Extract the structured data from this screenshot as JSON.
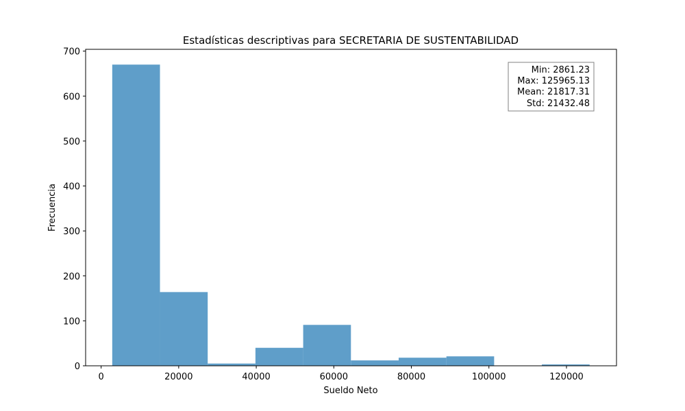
{
  "chart_data": {
    "type": "bar",
    "title": "Estadísticas descriptivas para SECRETARIA DE SUSTENTABILIDAD",
    "xlabel": "Sueldo Neto",
    "ylabel": "Frecuencia",
    "bin_edges": [
      2861.23,
      15171.62,
      27482.01,
      39792.4,
      52102.79,
      64413.18,
      76723.57,
      89033.96,
      101344.35,
      113654.74,
      125965.13
    ],
    "values": [
      670,
      164,
      5,
      40,
      91,
      12,
      18,
      21,
      0,
      3
    ],
    "xlim": [
      -4000,
      132900
    ],
    "ylim": [
      0,
      704
    ],
    "x_ticks": [
      0,
      20000,
      40000,
      60000,
      80000,
      100000,
      120000
    ],
    "y_ticks": [
      0,
      100,
      200,
      300,
      400,
      500,
      600,
      700
    ],
    "bar_color": "#5f9ec9",
    "grid": false,
    "stats_box": {
      "lines": [
        "Min: 2861.23",
        "Max: 125965.13",
        "Mean: 21817.31",
        "Std: 21432.48"
      ],
      "placement": "top-right"
    }
  }
}
